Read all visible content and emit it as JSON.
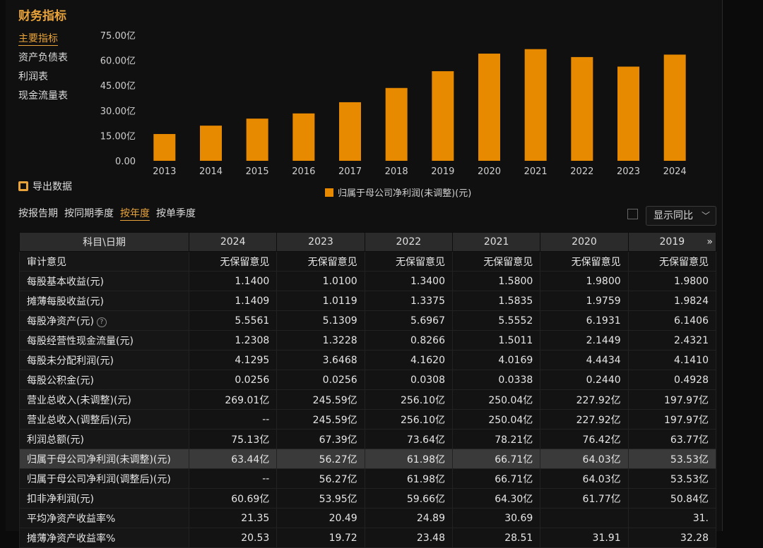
{
  "title": "财务指标",
  "sidebar": [
    {
      "label": "主要指标",
      "active": true
    },
    {
      "label": "资产负债表",
      "active": false
    },
    {
      "label": "利润表",
      "active": false
    },
    {
      "label": "现金流量表",
      "active": false
    }
  ],
  "export_label": "导出数据",
  "periods": [
    {
      "label": "按报告期",
      "active": false
    },
    {
      "label": "按同期季度",
      "active": false
    },
    {
      "label": "按年度",
      "active": true
    },
    {
      "label": "按单季度",
      "active": false
    }
  ],
  "yoy_label": "显示同比",
  "colors": {
    "accent": "#e8a33a",
    "bar": "#e88a00"
  },
  "chart_data": {
    "type": "bar",
    "categories": [
      "2013",
      "2014",
      "2015",
      "2016",
      "2017",
      "2018",
      "2019",
      "2020",
      "2021",
      "2022",
      "2023",
      "2024"
    ],
    "series": [
      {
        "name": "归属于母公司净利润(未调整)(元)",
        "values": [
          16.0,
          21.0,
          25.2,
          28.3,
          35.0,
          43.5,
          53.53,
          64.03,
          66.71,
          61.98,
          56.27,
          63.44
        ]
      }
    ],
    "yticks": [
      "0.00",
      "15.00亿",
      "30.00亿",
      "45.00亿",
      "60.00亿",
      "75.00亿"
    ],
    "ylim": [
      0,
      75
    ],
    "legend": "bottom"
  },
  "table": {
    "header_label": "科目\\日期",
    "columns": [
      "2024",
      "2023",
      "2022",
      "2021",
      "2020",
      "2019"
    ],
    "more_icon": "»",
    "rows": [
      {
        "label": "审计意见",
        "values": [
          "无保留意见",
          "无保留意见",
          "无保留意见",
          "无保留意见",
          "无保留意见",
          "无保留意见"
        ]
      },
      {
        "label": "每股基本收益(元)",
        "values": [
          "1.1400",
          "1.0100",
          "1.3400",
          "1.5800",
          "1.9800",
          "1.9800"
        ]
      },
      {
        "label": "摊薄每股收益(元)",
        "values": [
          "1.1409",
          "1.0119",
          "1.3375",
          "1.5835",
          "1.9759",
          "1.9824"
        ]
      },
      {
        "label": "每股净资产(元)",
        "help": "?",
        "values": [
          "5.5561",
          "5.1309",
          "5.6967",
          "5.5552",
          "6.1931",
          "6.1406"
        ]
      },
      {
        "label": "每股经营性现金流量(元)",
        "values": [
          "1.2308",
          "1.3228",
          "0.8266",
          "1.5011",
          "2.1449",
          "2.4321"
        ]
      },
      {
        "label": "每股未分配利润(元)",
        "values": [
          "4.1295",
          "3.6468",
          "4.1620",
          "4.0169",
          "4.4434",
          "4.1410"
        ]
      },
      {
        "label": "每股公积金(元)",
        "values": [
          "0.0256",
          "0.0256",
          "0.0308",
          "0.0338",
          "0.2440",
          "0.4928"
        ]
      },
      {
        "label": "营业总收入(未调整)(元)",
        "values": [
          "269.01亿",
          "245.59亿",
          "256.10亿",
          "250.04亿",
          "227.92亿",
          "197.97亿"
        ]
      },
      {
        "label": "营业总收入(调整后)(元)",
        "values": [
          "--",
          "245.59亿",
          "256.10亿",
          "250.04亿",
          "227.92亿",
          "197.97亿"
        ]
      },
      {
        "label": "利润总额(元)",
        "values": [
          "75.13亿",
          "67.39亿",
          "73.64亿",
          "78.21亿",
          "76.42亿",
          "63.77亿"
        ]
      },
      {
        "label": "归属于母公司净利润(未调整)(元)",
        "highlight": true,
        "values": [
          "63.44亿",
          "56.27亿",
          "61.98亿",
          "66.71亿",
          "64.03亿",
          "53.53亿"
        ]
      },
      {
        "label": "归属于母公司净利润(调整后)(元)",
        "values": [
          "--",
          "56.27亿",
          "61.98亿",
          "66.71亿",
          "64.03亿",
          "53.53亿"
        ]
      },
      {
        "label": "扣非净利润(元)",
        "values": [
          "60.69亿",
          "53.95亿",
          "59.66亿",
          "64.30亿",
          "61.77亿",
          "50.84亿"
        ]
      },
      {
        "label": "平均净资产收益率%",
        "values": [
          "21.35",
          "20.49",
          "24.89",
          "30.69",
          "",
          "31."
        ]
      },
      {
        "label": "摊薄净资产收益率%",
        "values": [
          "20.53",
          "19.72",
          "23.48",
          "28.51",
          "31.91",
          "32.28"
        ]
      }
    ]
  }
}
